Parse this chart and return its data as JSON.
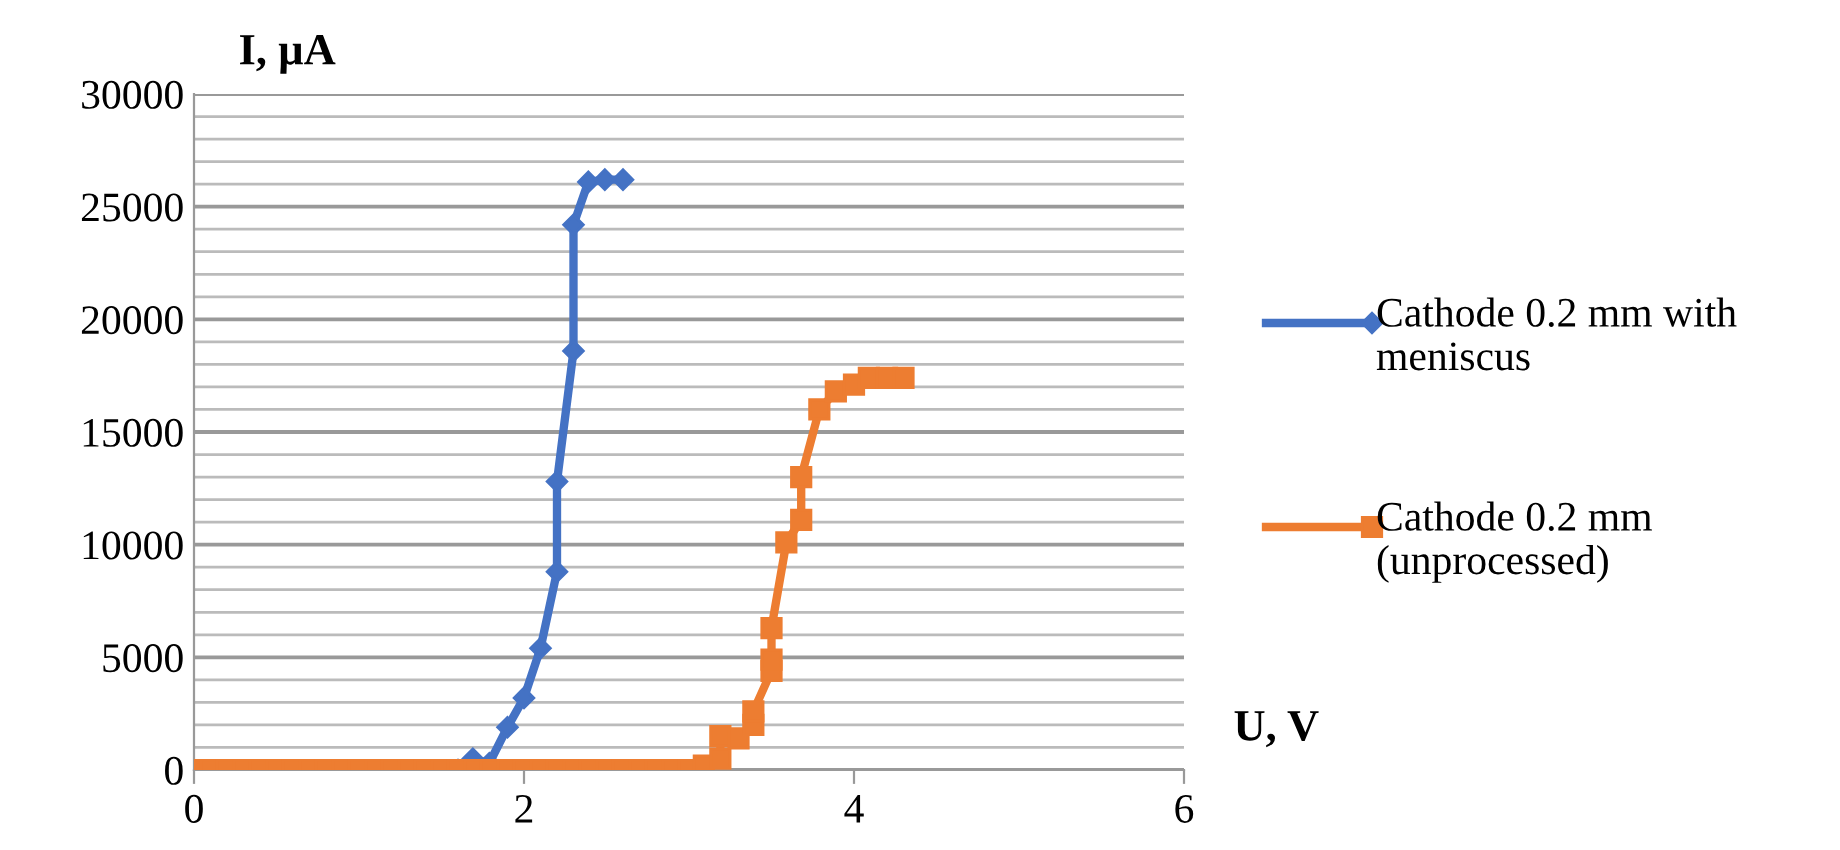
{
  "chart_data": {
    "type": "line",
    "xlabel": "U, V",
    "ylabel": "I, µA",
    "xlim": [
      0,
      6
    ],
    "xticks": [
      0,
      2,
      4,
      6
    ],
    "ylim": [
      0,
      30000
    ],
    "yticks": [
      0,
      {
        "value": 1000,
        "label": null
      },
      {
        "value": 2000,
        "label": null
      },
      {
        "value": 3000,
        "label": null
      },
      {
        "value": 4000,
        "label": null
      },
      5000,
      {
        "value": 6000,
        "label": null
      },
      {
        "value": 7000,
        "label": null
      },
      {
        "value": 8000,
        "label": null
      },
      {
        "value": 9000,
        "label": null
      },
      10000,
      {
        "value": 11000,
        "label": null
      },
      {
        "value": 12000,
        "label": null
      },
      {
        "value": 13000,
        "label": null
      },
      {
        "value": 14000,
        "label": null
      },
      15000,
      {
        "value": 16000,
        "label": null
      },
      {
        "value": 17000,
        "label": null
      },
      {
        "value": 18000,
        "label": null
      },
      {
        "value": 19000,
        "label": null
      },
      20000,
      {
        "value": 21000,
        "label": null
      },
      {
        "value": 22000,
        "label": null
      },
      {
        "value": 23000,
        "label": null
      },
      {
        "value": 24000,
        "label": null
      },
      25000,
      {
        "value": 26000,
        "label": null
      },
      {
        "value": 27000,
        "label": null
      },
      {
        "value": 28000,
        "label": null
      },
      {
        "value": 29000,
        "label": null
      },
      30000
    ],
    "grid": "y",
    "legend": "right",
    "series": [
      {
        "name": "Cathode 0.2 mm with meniscus",
        "color": "#4472c4",
        "marker": "diamond",
        "x": [
          1.6,
          1.69,
          1.79,
          1.9,
          2.0,
          2.1,
          2.2,
          2.2,
          2.3,
          2.3,
          2.39,
          2.49,
          2.6
        ],
        "values": [
          0,
          500,
          300,
          1900,
          3200,
          5400,
          8800,
          12800,
          18600,
          24200,
          26100,
          26200,
          26200
        ]
      },
      {
        "name": "Cathode 0.2 mm (unprocessed)",
        "color": "#ed7d31",
        "marker": "square",
        "x": [
          0,
          0.1,
          0.2,
          0.3,
          0.4,
          0.5,
          0.6,
          0.7,
          0.8,
          0.9,
          1.0,
          1.1,
          1.2,
          1.3,
          1.4,
          1.5,
          1.6,
          1.7,
          1.8,
          1.9,
          2.0,
          2.1,
          2.2,
          2.3,
          2.4,
          2.5,
          2.6,
          2.7,
          2.8,
          2.9,
          3.0,
          3.09,
          3.19,
          3.19,
          3.3,
          3.39,
          3.39,
          3.5,
          3.5,
          3.5,
          3.59,
          3.68,
          3.68,
          3.79,
          3.89,
          4.0,
          4.09,
          4.2,
          4.3
        ],
        "values": [
          0,
          0,
          0,
          0,
          0,
          0,
          0,
          0,
          0,
          0,
          0,
          0,
          0,
          0,
          0,
          0,
          0,
          0,
          0,
          0,
          0,
          0,
          0,
          0,
          0,
          0,
          0,
          0,
          0,
          0,
          0,
          200,
          500,
          1500,
          1400,
          2000,
          2600,
          4400,
          4900,
          6300,
          10100,
          11100,
          13000,
          16000,
          16800,
          17100,
          17400,
          17400,
          17400
        ]
      }
    ]
  }
}
